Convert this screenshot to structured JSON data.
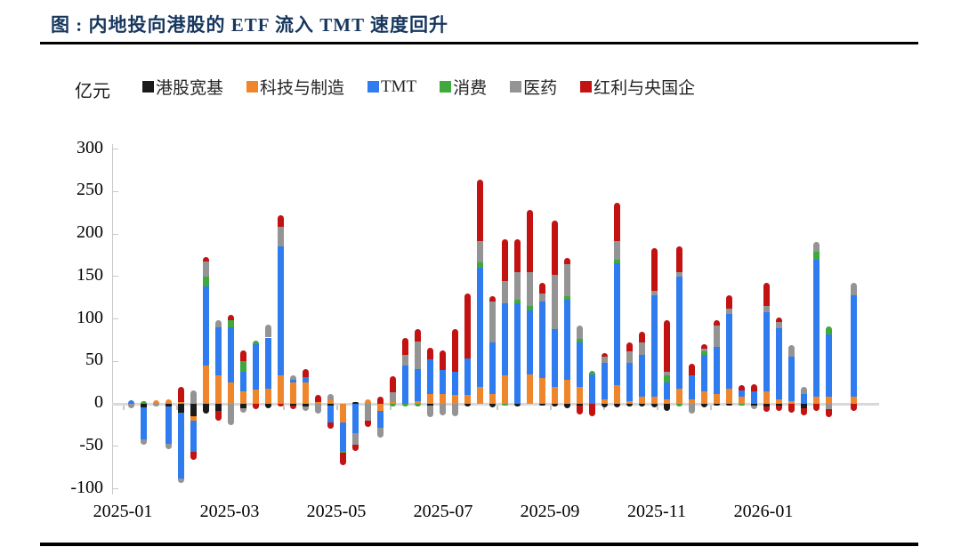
{
  "header": {
    "title": "图 : 内地投向港股的 ETF 流入 TMT 速度回升"
  },
  "chart_data": {
    "type": "bar",
    "stacked": true,
    "title": "内地投向港股的 ETF 流入 TMT 速度回升",
    "unit_label": "亿元",
    "ylim": [
      -100,
      300
    ],
    "y_ticks": [
      300,
      250,
      200,
      150,
      100,
      50,
      0,
      -50,
      -100
    ],
    "x_tick_labels": [
      "2025-01",
      "2025-03",
      "2025-05",
      "2025-07",
      "2025-09",
      "2025-11",
      "2026-01"
    ],
    "grid": false,
    "legend_position": "top",
    "x_frequency": "weekly",
    "weeks": [
      "2025-01-03",
      "2025-01-10",
      "2025-01-17",
      "2025-01-24",
      "2025-01-31",
      "2025-02-07",
      "2025-02-14",
      "2025-02-21",
      "2025-02-28",
      "2025-03-07",
      "2025-03-14",
      "2025-03-21",
      "2025-03-28",
      "2025-04-04",
      "2025-04-11",
      "2025-04-18",
      "2025-04-25",
      "2025-05-02",
      "2025-05-09",
      "2025-05-16",
      "2025-05-23",
      "2025-05-30",
      "2025-06-06",
      "2025-06-13",
      "2025-06-20",
      "2025-06-27",
      "2025-07-04",
      "2025-07-11",
      "2025-07-18",
      "2025-07-25",
      "2025-08-01",
      "2025-08-08",
      "2025-08-15",
      "2025-08-22",
      "2025-08-29",
      "2025-09-05",
      "2025-09-12",
      "2025-09-19",
      "2025-09-26",
      "2025-10-03",
      "2025-10-10",
      "2025-10-17",
      "2025-10-24",
      "2025-10-31",
      "2025-11-07",
      "2025-11-14",
      "2025-11-21",
      "2025-11-28",
      "2025-12-05",
      "2025-12-12",
      "2025-12-19",
      "2025-12-26",
      "2026-01-02",
      "2026-01-09",
      "2026-01-16",
      "2026-01-23",
      "2026-01-30",
      "2026-02-06",
      "2026-02-13",
      "2026-02-20"
    ],
    "series": [
      {
        "name": "港股宽基",
        "color": "#1a1a1a",
        "pos": [
          0,
          0,
          0,
          0,
          0,
          0,
          0,
          0,
          0,
          0,
          0,
          0,
          0,
          0,
          0,
          0,
          0,
          0,
          0,
          2,
          0,
          0,
          0,
          0,
          0,
          0,
          0,
          0,
          0,
          0,
          0,
          0,
          0,
          0,
          0,
          0,
          0,
          0,
          0,
          0,
          0,
          0,
          0,
          0,
          0,
          0,
          0,
          0,
          0,
          0,
          0,
          0,
          0,
          0,
          0,
          0,
          0,
          0,
          0,
          0
        ],
        "neg": [
          0,
          0,
          4,
          0,
          3,
          10,
          15,
          12,
          8,
          0,
          5,
          0,
          5,
          0,
          2,
          3,
          0,
          2,
          0,
          0,
          0,
          0,
          0,
          0,
          0,
          2,
          0,
          0,
          3,
          0,
          4,
          0,
          3,
          0,
          2,
          3,
          5,
          2,
          0,
          4,
          4,
          3,
          3,
          4,
          8,
          0,
          0,
          4,
          2,
          2,
          0,
          2,
          3,
          2,
          0,
          5,
          0,
          0,
          0,
          0
        ]
      },
      {
        "name": "科技与制造",
        "color": "#F0862B",
        "pos": [
          0,
          0,
          0,
          4,
          5,
          2,
          0,
          45,
          33,
          25,
          15,
          17,
          18,
          33,
          25,
          25,
          2,
          4,
          0,
          0,
          5,
          0,
          2,
          0,
          3,
          12,
          12,
          10,
          10,
          20,
          12,
          33,
          0,
          35,
          30,
          20,
          28,
          20,
          0,
          5,
          22,
          3,
          8,
          8,
          5,
          18,
          5,
          15,
          12,
          18,
          8,
          0,
          15,
          5,
          3,
          0,
          8,
          8,
          0,
          8
        ],
        "neg": [
          0,
          0,
          0,
          0,
          0,
          0,
          5,
          0,
          0,
          0,
          0,
          0,
          0,
          0,
          0,
          0,
          0,
          0,
          22,
          0,
          0,
          8,
          0,
          0,
          0,
          0,
          0,
          0,
          0,
          0,
          0,
          0,
          0,
          0,
          0,
          0,
          0,
          0,
          0,
          0,
          0,
          0,
          0,
          0,
          0,
          0,
          0,
          0,
          0,
          0,
          0,
          0,
          0,
          0,
          0,
          0,
          0,
          0,
          0,
          0
        ]
      },
      {
        "name": "TMT",
        "color": "#2E7CEF",
        "pos": [
          0,
          4,
          0,
          0,
          0,
          0,
          0,
          93,
          57,
          65,
          23,
          53,
          60,
          152,
          3,
          6,
          0,
          0,
          0,
          0,
          0,
          0,
          0,
          45,
          38,
          40,
          28,
          28,
          43,
          140,
          60,
          85,
          118,
          75,
          90,
          68,
          94,
          52,
          35,
          43,
          143,
          45,
          50,
          120,
          20,
          132,
          28,
          43,
          55,
          88,
          8,
          15,
          93,
          84,
          52,
          12,
          162,
          74,
          0,
          120
        ],
        "neg": [
          0,
          0,
          38,
          0,
          44,
          78,
          37,
          0,
          0,
          0,
          0,
          0,
          0,
          0,
          0,
          0,
          0,
          20,
          33,
          35,
          0,
          20,
          0,
          0,
          0,
          0,
          0,
          0,
          0,
          0,
          0,
          0,
          0,
          0,
          0,
          0,
          0,
          0,
          0,
          0,
          0,
          0,
          0,
          0,
          0,
          0,
          0,
          0,
          0,
          0,
          0,
          0,
          0,
          0,
          0,
          0,
          0,
          0,
          0,
          0
        ]
      },
      {
        "name": "消费",
        "color": "#3FA93C",
        "pos": [
          0,
          0,
          3,
          0,
          0,
          0,
          0,
          12,
          0,
          8,
          12,
          4,
          0,
          0,
          0,
          0,
          0,
          0,
          0,
          0,
          0,
          0,
          0,
          0,
          0,
          0,
          0,
          0,
          0,
          7,
          0,
          0,
          5,
          5,
          0,
          0,
          5,
          4,
          4,
          0,
          5,
          0,
          0,
          0,
          8,
          0,
          0,
          4,
          0,
          0,
          0,
          0,
          0,
          0,
          0,
          0,
          9,
          9,
          0,
          0
        ],
        "neg": [
          0,
          0,
          0,
          0,
          0,
          0,
          0,
          0,
          0,
          0,
          0,
          0,
          0,
          0,
          0,
          0,
          0,
          0,
          3,
          0,
          0,
          0,
          3,
          3,
          3,
          0,
          0,
          0,
          0,
          0,
          0,
          2,
          0,
          0,
          0,
          0,
          0,
          0,
          0,
          0,
          0,
          0,
          0,
          0,
          0,
          3,
          0,
          0,
          0,
          0,
          2,
          0,
          0,
          0,
          0,
          0,
          0,
          0,
          0,
          0
        ]
      },
      {
        "name": "医药",
        "color": "#949494",
        "pos": [
          0,
          0,
          0,
          0,
          0,
          0,
          16,
          18,
          8,
          0,
          0,
          0,
          15,
          23,
          6,
          0,
          0,
          7,
          0,
          0,
          0,
          0,
          12,
          13,
          32,
          0,
          0,
          0,
          0,
          25,
          48,
          26,
          32,
          40,
          10,
          64,
          37,
          16,
          0,
          7,
          22,
          14,
          14,
          5,
          5,
          5,
          0,
          3,
          25,
          6,
          0,
          0,
          7,
          7,
          14,
          8,
          12,
          0,
          0,
          14
        ],
        "neg": [
          0,
          5,
          6,
          3,
          6,
          5,
          0,
          0,
          0,
          25,
          5,
          0,
          0,
          0,
          0,
          5,
          12,
          0,
          0,
          13,
          20,
          12,
          0,
          0,
          0,
          14,
          14,
          15,
          0,
          0,
          0,
          0,
          0,
          0,
          0,
          0,
          0,
          0,
          0,
          0,
          0,
          0,
          0,
          0,
          0,
          0,
          12,
          0,
          0,
          0,
          0,
          4,
          0,
          0,
          0,
          0,
          0,
          6,
          0,
          0
        ]
      },
      {
        "name": "红利与央国企",
        "color": "#C21212",
        "pos": [
          0,
          0,
          0,
          0,
          0,
          18,
          0,
          5,
          0,
          7,
          13,
          0,
          0,
          14,
          0,
          10,
          8,
          0,
          0,
          0,
          0,
          8,
          18,
          19,
          15,
          14,
          23,
          50,
          77,
          72,
          7,
          50,
          39,
          73,
          12,
          64,
          8,
          0,
          0,
          5,
          45,
          10,
          13,
          50,
          60,
          30,
          14,
          5,
          6,
          16,
          6,
          8,
          27,
          6,
          0,
          0,
          0,
          0,
          0,
          0
        ],
        "neg": [
          0,
          0,
          0,
          0,
          0,
          0,
          9,
          0,
          12,
          0,
          0,
          6,
          0,
          3,
          4,
          0,
          0,
          7,
          14,
          7,
          7,
          0,
          0,
          0,
          0,
          0,
          0,
          0,
          0,
          0,
          0,
          0,
          0,
          0,
          0,
          0,
          0,
          11,
          15,
          0,
          0,
          0,
          0,
          0,
          0,
          0,
          0,
          0,
          0,
          0,
          0,
          0,
          6,
          6,
          10,
          9,
          8,
          10,
          0,
          8
        ]
      }
    ]
  }
}
